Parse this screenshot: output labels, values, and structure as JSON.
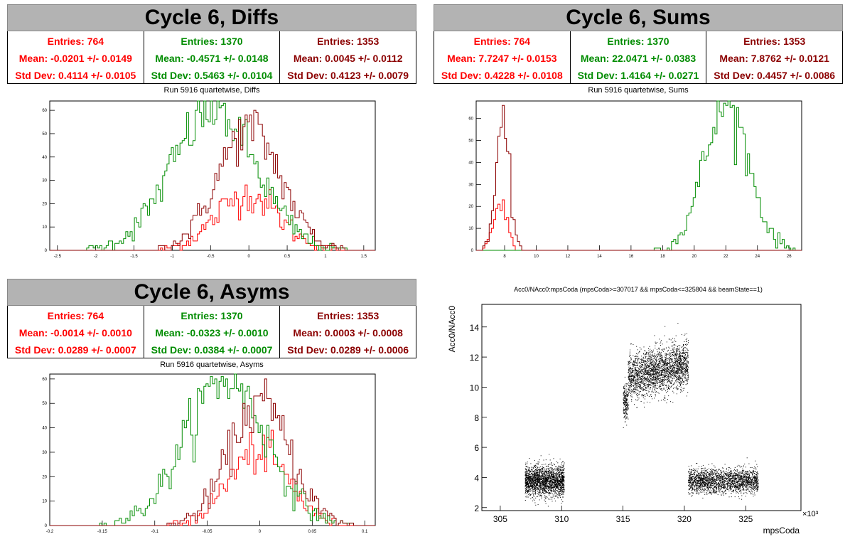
{
  "colors": {
    "red": "#ff0000",
    "green": "#008c00",
    "darkred": "#8b0000",
    "black": "#000000"
  },
  "panels": {
    "diffs": {
      "title": "Cycle 6, Diffs",
      "subtitle": "Run 5916 quartetwise, Diffs",
      "stats": [
        {
          "entries": "Entries: 764",
          "mean": "Mean: -0.0201 +/- 0.0149",
          "std": "Std Dev: 0.4114 +/- 0.0105",
          "color": "#ff0000"
        },
        {
          "entries": "Entries: 1370",
          "mean": "Mean: -0.4571 +/- 0.0148",
          "std": "Std Dev: 0.5463 +/- 0.0104",
          "color": "#008c00"
        },
        {
          "entries": "Entries: 1353",
          "mean": "Mean: 0.0045 +/- 0.0112",
          "std": "Std Dev: 0.4123 +/- 0.0079",
          "color": "#8b0000"
        }
      ]
    },
    "sums": {
      "title": "Cycle 6, Sums",
      "subtitle": "Run 5916 quartetwise, Sums",
      "stats": [
        {
          "entries": "Entries: 764",
          "mean": "Mean: 7.7247 +/- 0.0153",
          "std": "Std Dev: 0.4228 +/- 0.0108",
          "color": "#ff0000"
        },
        {
          "entries": "Entries: 1370",
          "mean": "Mean: 22.0471 +/- 0.0383",
          "std": "Std Dev: 1.4164 +/- 0.0271",
          "color": "#008c00"
        },
        {
          "entries": "Entries: 1353",
          "mean": "Mean: 7.8762 +/- 0.0121",
          "std": "Std Dev: 0.4457 +/- 0.0086",
          "color": "#8b0000"
        }
      ]
    },
    "asyms": {
      "title": "Cycle 6, Asyms",
      "subtitle": "Run 5916 quartetwise, Asyms",
      "stats": [
        {
          "entries": "Entries: 764",
          "mean": "Mean: -0.0014 +/- 0.0010",
          "std": "Std Dev: 0.0289 +/- 0.0007",
          "color": "#ff0000"
        },
        {
          "entries": "Entries: 1370",
          "mean": "Mean: -0.0323 +/- 0.0010",
          "std": "Std Dev: 0.0384 +/- 0.0007",
          "color": "#008c00"
        },
        {
          "entries": "Entries: 1353",
          "mean": "Mean: 0.0003 +/- 0.0008",
          "std": "Std Dev: 0.0289 +/- 0.0006",
          "color": "#8b0000"
        }
      ]
    },
    "scatter": {
      "title": "Acc0/NAcc0:mpsCoda (mpsCoda>=307017 && mpsCoda<=325804 && beamState==1)",
      "xlabel": "mpsCoda",
      "ylabel": "Acc0/NAcc0",
      "exponent": "×10³"
    }
  },
  "chart_data": [
    {
      "type": "histogram",
      "name": "diffs",
      "xlim": [
        -2.6,
        1.65
      ],
      "ylim": [
        0,
        64
      ],
      "xticks": [
        -2.5,
        -2,
        -1.5,
        -1,
        -0.5,
        0,
        0.5,
        1,
        1.5
      ],
      "yticks": [
        0,
        10,
        20,
        30,
        40,
        50,
        60
      ],
      "series": [
        {
          "color": "#ff0000",
          "mean": -0.0201,
          "std": 0.4114,
          "entries": 764,
          "peak": 24
        },
        {
          "color": "#008c00",
          "mean": -0.4571,
          "std": 0.5463,
          "entries": 1370,
          "peak": 60
        },
        {
          "color": "#8b0000",
          "mean": 0.0045,
          "std": 0.4123,
          "entries": 1353,
          "peak": 52
        }
      ]
    },
    {
      "type": "histogram",
      "name": "sums",
      "xlim": [
        6.2,
        26.8
      ],
      "ylim": [
        0,
        68
      ],
      "xticks": [
        8,
        10,
        12,
        14,
        16,
        18,
        20,
        22,
        24,
        26
      ],
      "yticks": [
        0,
        10,
        20,
        30,
        40,
        50,
        60
      ],
      "series": [
        {
          "color": "#ff0000",
          "mean": 7.7247,
          "std": 0.4228,
          "entries": 764,
          "peak": 22
        },
        {
          "color": "#008c00",
          "mean": 22.0471,
          "std": 1.4164,
          "entries": 1370,
          "peak": 66
        },
        {
          "color": "#8b0000",
          "mean": 7.8762,
          "std": 0.4457,
          "entries": 1353,
          "peak": 53
        }
      ]
    },
    {
      "type": "histogram",
      "name": "asyms",
      "xlim": [
        -0.2,
        0.11
      ],
      "ylim": [
        0,
        62
      ],
      "xticks": [
        -0.2,
        -0.15,
        -0.1,
        -0.05,
        0,
        0.05,
        0.1
      ],
      "yticks": [
        0,
        10,
        20,
        30,
        40,
        50,
        60
      ],
      "series": [
        {
          "color": "#ff0000",
          "mean": -0.0014,
          "std": 0.0289,
          "entries": 764,
          "peak": 30
        },
        {
          "color": "#008c00",
          "mean": -0.0323,
          "std": 0.0384,
          "entries": 1370,
          "peak": 60
        },
        {
          "color": "#8b0000",
          "mean": 0.0003,
          "std": 0.0289,
          "entries": 1353,
          "peak": 50
        }
      ]
    },
    {
      "type": "scatter",
      "name": "scatter",
      "xlim": [
        303.5,
        329.5
      ],
      "ylim": [
        1.8,
        15.5
      ],
      "xticks": [
        305,
        310,
        315,
        320,
        325
      ],
      "yticks": [
        2,
        4,
        6,
        8,
        10,
        12,
        14
      ],
      "clusters": [
        {
          "x": [
            307.0,
            310.2
          ],
          "y": 3.8,
          "spread": 0.5
        },
        {
          "x": [
            315.0,
            320.3
          ],
          "y": 10.8,
          "spread": 0.9
        },
        {
          "x": [
            320.3,
            326.0
          ],
          "y": 3.8,
          "spread": 0.4
        }
      ]
    }
  ]
}
